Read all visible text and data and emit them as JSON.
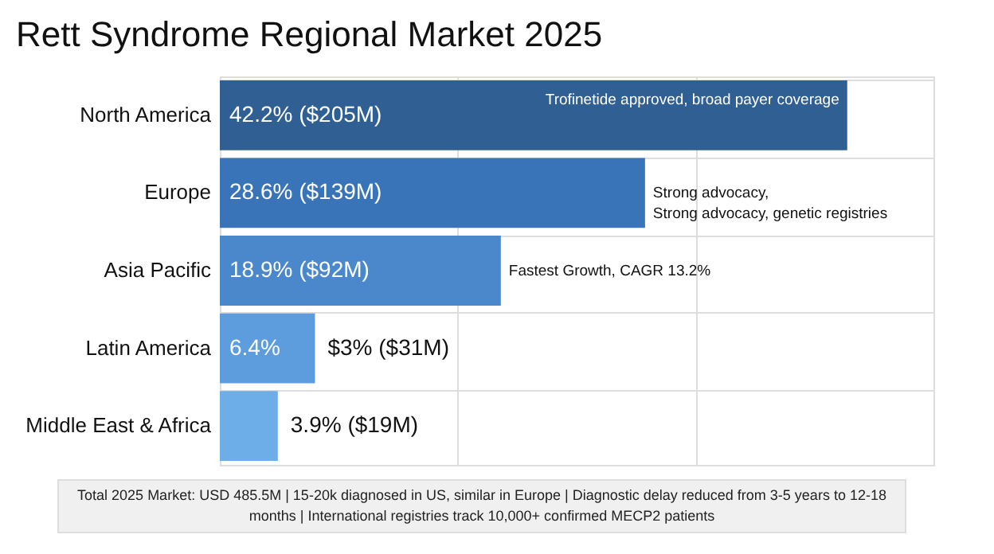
{
  "chart_data": {
    "type": "bar",
    "orientation": "horizontal",
    "relative": false,
    "title": "Rett Syndrome Regional Market 2025",
    "categories": [
      "North America",
      "Europe",
      "Asia Pacific",
      "Latin America",
      "Middle East & Africa"
    ],
    "values": [
      42.2,
      28.6,
      18.9,
      6.4,
      3.9
    ],
    "colors": [
      "#2f5f93",
      "#3a74b8",
      "#4a88cb",
      "#5d9ddd",
      "#6eaee8"
    ],
    "value_labels": [
      "42.2% ($205M)",
      "28.6% ($139M)",
      "18.9% ($92M)",
      "6.4%",
      "3.9% ($19M)"
    ],
    "xlim": [
      0,
      48
    ],
    "xticks": [
      {
        "value": 0,
        "label": null
      },
      {
        "value": 16,
        "label": null
      },
      {
        "value": 32,
        "label": null
      },
      {
        "value": 48,
        "label": null
      }
    ],
    "tick_labels": "y",
    "grid": true,
    "annotations": [
      {
        "text": "Trofinetide approved, broad payer coverage",
        "x": 42.2,
        "y": "North America"
      },
      {
        "text": "Strong advocacy,\nStrong advocacy, genetic registries",
        "x": 28.6,
        "y": "Europe"
      },
      {
        "text": "Fastest Growth, CAGR 13.2%",
        "x": 18.9,
        "y": "Asia Pacific"
      },
      {
        "text": "$3% ($31M)",
        "x": 6.4,
        "y": "Latin America"
      },
      "Total 2025 Market: USD 485.5M | 15-20k diagnosed in US, similar in Europe | Diagnostic delay reduced from 3-5 years to 12-18 months | International registries track 10,000+ confirmed MECP2 patients"
    ]
  }
}
